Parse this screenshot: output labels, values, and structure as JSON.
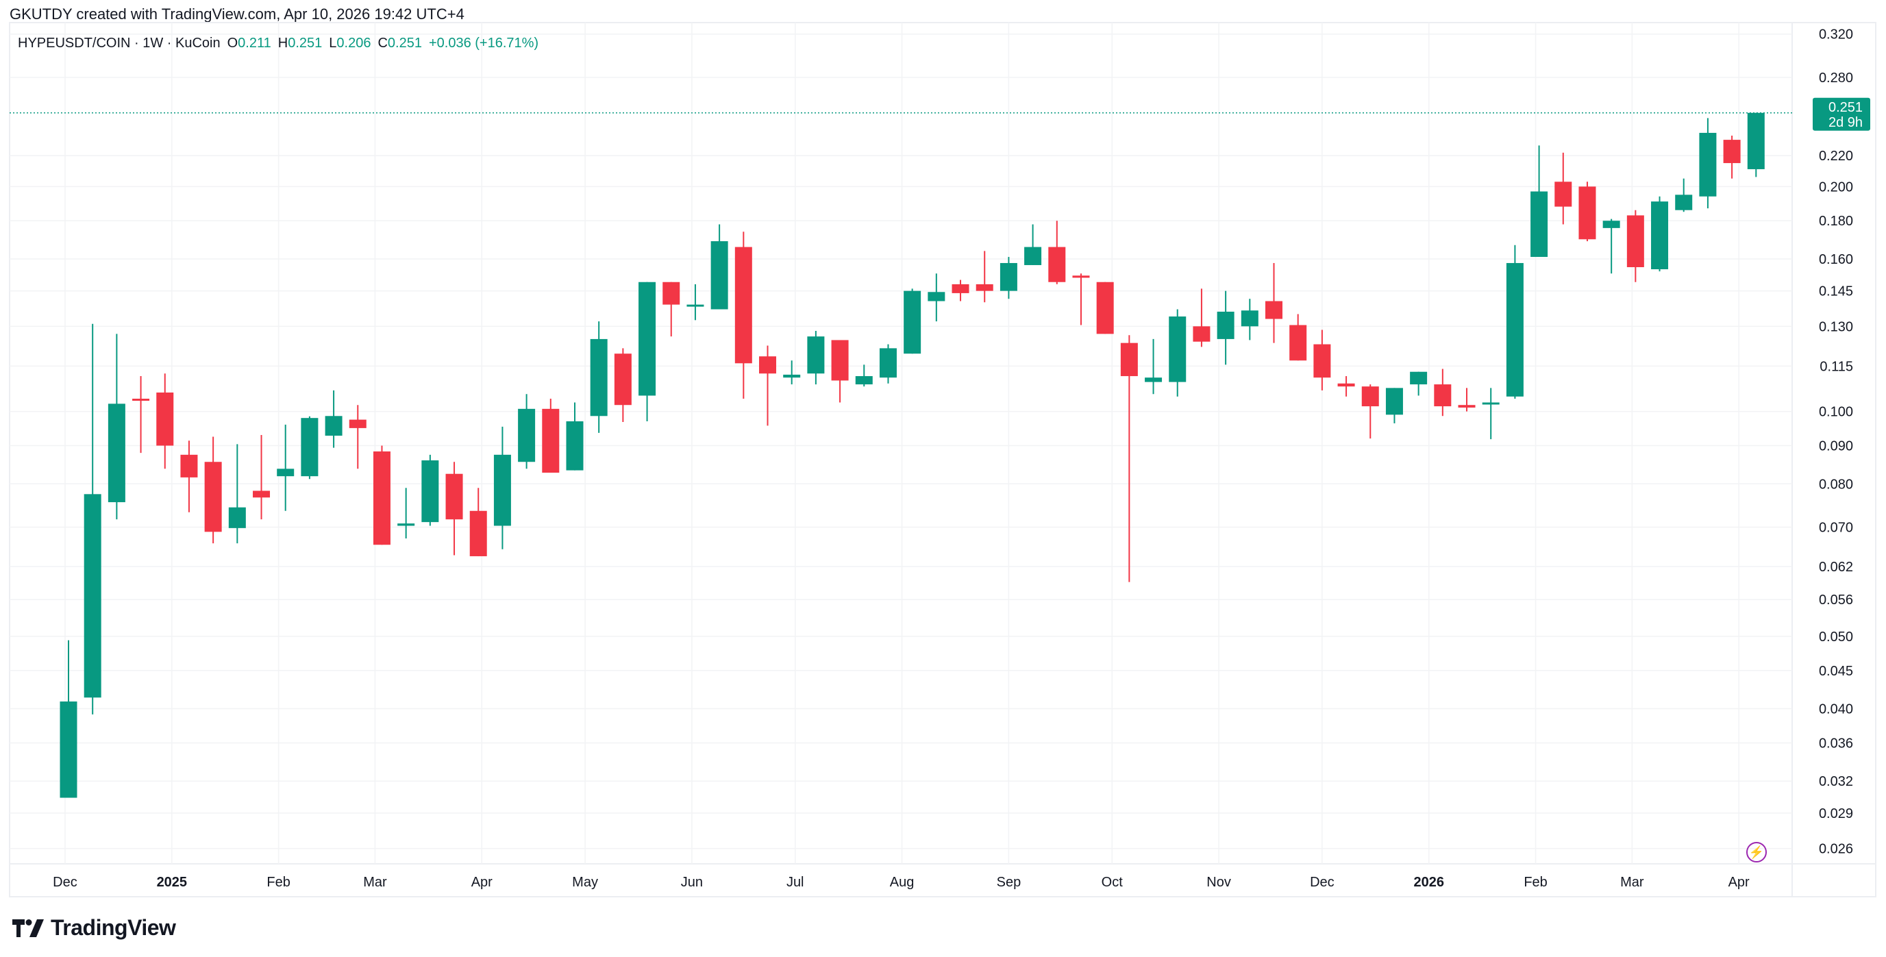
{
  "credit": "GKUTDY created with TradingView.com, Apr 10, 2026 19:42 UTC+4",
  "legend": {
    "symbol": "HYPEUSDT/COIN · 1W · KuCoin",
    "o_label": "O",
    "o": "0.211",
    "h_label": "H",
    "h": "0.251",
    "l_label": "L",
    "l": "0.206",
    "c_label": "C",
    "c": "0.251",
    "change": "+0.036 (+16.71%)"
  },
  "last_price": {
    "value": "0.251",
    "countdown": "2d 9h"
  },
  "brand": "TradingView",
  "icons": {
    "alert": "lightning-icon",
    "logo": "tradingview-logo"
  },
  "colors": {
    "up": "#089981",
    "down": "#F23645",
    "grid": "#f2f3f5",
    "axis_text": "#131722"
  },
  "chart_data": {
    "type": "candlestick",
    "interval": "1W",
    "scale": "log",
    "ylim": [
      0.0245,
      0.335
    ],
    "first_candle_date": "2024-12-02",
    "y_ticks": [
      "0.320",
      "0.280",
      "0.220",
      "0.200",
      "0.180",
      "0.160",
      "0.145",
      "0.130",
      "0.115",
      "0.100",
      "0.090",
      "0.080",
      "0.070",
      "0.062",
      "0.056",
      "0.050",
      "0.045",
      "0.040",
      "0.036",
      "0.032",
      "0.029",
      "0.026"
    ],
    "x_ticks": [
      {
        "label": "Dec",
        "date": "2024-12-01",
        "bold": false
      },
      {
        "label": "2025",
        "date": "2025-01-01",
        "bold": true
      },
      {
        "label": "Feb",
        "date": "2025-02-01",
        "bold": false
      },
      {
        "label": "Mar",
        "date": "2025-03-01",
        "bold": false
      },
      {
        "label": "Apr",
        "date": "2025-04-01",
        "bold": false
      },
      {
        "label": "May",
        "date": "2025-05-01",
        "bold": false
      },
      {
        "label": "Jun",
        "date": "2025-06-01",
        "bold": false
      },
      {
        "label": "Jul",
        "date": "2025-07-01",
        "bold": false
      },
      {
        "label": "Aug",
        "date": "2025-08-01",
        "bold": false
      },
      {
        "label": "Sep",
        "date": "2025-09-01",
        "bold": false
      },
      {
        "label": "Oct",
        "date": "2025-10-01",
        "bold": false
      },
      {
        "label": "Nov",
        "date": "2025-11-01",
        "bold": false
      },
      {
        "label": "Dec",
        "date": "2025-12-01",
        "bold": false
      },
      {
        "label": "2026",
        "date": "2026-01-01",
        "bold": true
      },
      {
        "label": "Feb",
        "date": "2026-02-01",
        "bold": false
      },
      {
        "label": "Mar",
        "date": "2026-03-01",
        "bold": false
      },
      {
        "label": "Apr",
        "date": "2026-04-01",
        "bold": false
      }
    ],
    "ohlc": [
      [
        0.0304,
        0.0494,
        0.0304,
        0.0409
      ],
      [
        0.0414,
        0.131,
        0.0393,
        0.0775
      ],
      [
        0.0756,
        0.127,
        0.0717,
        0.1024
      ],
      [
        0.104,
        0.1115,
        0.088,
        0.1035
      ],
      [
        0.106,
        0.1124,
        0.0838,
        0.09
      ],
      [
        0.0875,
        0.0914,
        0.0733,
        0.0816
      ],
      [
        0.0856,
        0.0925,
        0.0666,
        0.069
      ],
      [
        0.0698,
        0.0904,
        0.0666,
        0.0744
      ],
      [
        0.0783,
        0.093,
        0.0717,
        0.0767
      ],
      [
        0.0819,
        0.096,
        0.0736,
        0.0838
      ],
      [
        0.0819,
        0.0985,
        0.0812,
        0.098
      ],
      [
        0.0928,
        0.1067,
        0.0894,
        0.0986
      ],
      [
        0.0975,
        0.102,
        0.0838,
        0.095
      ],
      [
        0.0884,
        0.09,
        0.0663,
        0.0663
      ],
      [
        0.0703,
        0.079,
        0.0676,
        0.0708
      ],
      [
        0.0711,
        0.0875,
        0.0703,
        0.086
      ],
      [
        0.0825,
        0.0856,
        0.0642,
        0.0717
      ],
      [
        0.0736,
        0.079,
        0.064,
        0.064
      ],
      [
        0.0703,
        0.0954,
        0.0654,
        0.0875
      ],
      [
        0.0856,
        0.1055,
        0.0838,
        0.1008
      ],
      [
        0.1008,
        0.104,
        0.0828,
        0.0828
      ],
      [
        0.0834,
        0.1028,
        0.0834,
        0.097
      ],
      [
        0.0986,
        0.132,
        0.0936,
        0.125
      ],
      [
        0.1195,
        0.1215,
        0.0968,
        0.102
      ],
      [
        0.105,
        0.149,
        0.097,
        0.149
      ],
      [
        0.149,
        0.149,
        0.126,
        0.139
      ],
      [
        0.1385,
        0.148,
        0.1325,
        0.139
      ],
      [
        0.137,
        0.178,
        0.137,
        0.169
      ],
      [
        0.166,
        0.174,
        0.104,
        0.116
      ],
      [
        0.1185,
        0.1225,
        0.0957,
        0.1124
      ],
      [
        0.111,
        0.117,
        0.1087,
        0.112
      ],
      [
        0.1124,
        0.1282,
        0.1087,
        0.126
      ],
      [
        0.1246,
        0.1246,
        0.1028,
        0.11
      ],
      [
        0.1087,
        0.1155,
        0.108,
        0.1115
      ],
      [
        0.111,
        0.123,
        0.109,
        0.1215
      ],
      [
        0.1195,
        0.146,
        0.1195,
        0.145
      ],
      [
        0.1405,
        0.153,
        0.132,
        0.1445
      ],
      [
        0.148,
        0.15,
        0.1405,
        0.144
      ],
      [
        0.148,
        0.164,
        0.14,
        0.145
      ],
      [
        0.145,
        0.161,
        0.1415,
        0.158
      ],
      [
        0.157,
        0.178,
        0.157,
        0.166
      ],
      [
        0.166,
        0.18,
        0.148,
        0.149
      ],
      [
        0.152,
        0.153,
        0.1305,
        0.151
      ],
      [
        0.149,
        0.149,
        0.127,
        0.127
      ],
      [
        0.1235,
        0.1265,
        0.0591,
        0.1115
      ],
      [
        0.1095,
        0.125,
        0.1055,
        0.111
      ],
      [
        0.1095,
        0.137,
        0.1047,
        0.134
      ],
      [
        0.13,
        0.146,
        0.122,
        0.124
      ],
      [
        0.125,
        0.145,
        0.1155,
        0.136
      ],
      [
        0.13,
        0.1415,
        0.1246,
        0.1365
      ],
      [
        0.1405,
        0.158,
        0.1235,
        0.133
      ],
      [
        0.1305,
        0.135,
        0.117,
        0.117
      ],
      [
        0.123,
        0.1286,
        0.1067,
        0.111
      ],
      [
        0.109,
        0.1115,
        0.1047,
        0.108
      ],
      [
        0.108,
        0.1087,
        0.092,
        0.1016
      ],
      [
        0.099,
        0.1075,
        0.0964,
        0.1075
      ],
      [
        0.1087,
        0.113,
        0.105,
        0.113
      ],
      [
        0.1087,
        0.114,
        0.0986,
        0.1016
      ],
      [
        0.102,
        0.1075,
        0.1,
        0.1012
      ],
      [
        0.1024,
        0.1075,
        0.0918,
        0.1028
      ],
      [
        0.1047,
        0.167,
        0.104,
        0.158
      ],
      [
        0.161,
        0.227,
        0.161,
        0.197
      ],
      [
        0.203,
        0.222,
        0.178,
        0.188
      ],
      [
        0.2,
        0.203,
        0.169,
        0.17
      ],
      [
        0.176,
        0.181,
        0.153,
        0.18
      ],
      [
        0.183,
        0.186,
        0.149,
        0.156
      ],
      [
        0.155,
        0.194,
        0.154,
        0.191
      ],
      [
        0.186,
        0.205,
        0.185,
        0.195
      ],
      [
        0.194,
        0.247,
        0.187,
        0.236
      ],
      [
        0.231,
        0.234,
        0.205,
        0.215
      ],
      [
        0.211,
        0.251,
        0.206,
        0.251
      ]
    ]
  }
}
